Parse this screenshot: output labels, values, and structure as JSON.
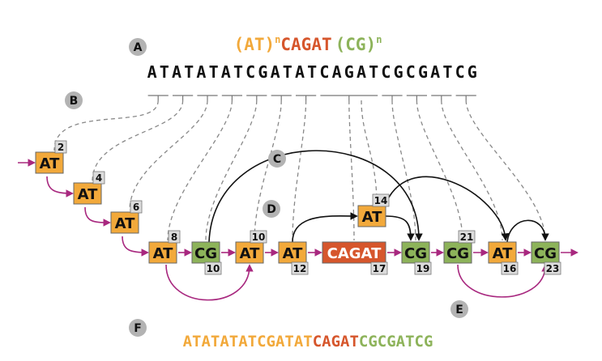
{
  "colors": {
    "at": "#f2a93b",
    "cg": "#8db35a",
    "cagat": "#d6562c",
    "num_bg": "#dcdcdc",
    "marker": "#b3b3b3",
    "magenta": "#a8287f",
    "dash": "#888888",
    "black": "#111111"
  },
  "formula": {
    "at_part": "(AT)",
    "exp1": "n",
    "cagat_part": "CAGAT",
    "cg_part": "(CG)",
    "exp2": "n"
  },
  "sequence": "ATATATATCGATATCAGATCGCGATCG",
  "markers": [
    "A",
    "B",
    "C",
    "D",
    "E",
    "F"
  ],
  "nodes": [
    {
      "label": "AT",
      "num": "2"
    },
    {
      "label": "AT",
      "num": "4"
    },
    {
      "label": "AT",
      "num": "6"
    },
    {
      "label": "AT",
      "num": "8"
    },
    {
      "label": "CG",
      "num": "10"
    },
    {
      "label": "AT",
      "num": "10"
    },
    {
      "label": "AT",
      "num": "12"
    },
    {
      "label": "CAGAT",
      "num": "17"
    },
    {
      "label": "AT",
      "num": "14"
    },
    {
      "label": "CG",
      "num": "19"
    },
    {
      "label": "CG",
      "num": "21"
    },
    {
      "label": "AT",
      "num": "16"
    },
    {
      "label": "CG",
      "num": "23"
    }
  ],
  "bottom": {
    "at_part": "ATATATATCGATAT",
    "cagat_part": "CAGAT",
    "cg_part": "CGCGATCG"
  }
}
